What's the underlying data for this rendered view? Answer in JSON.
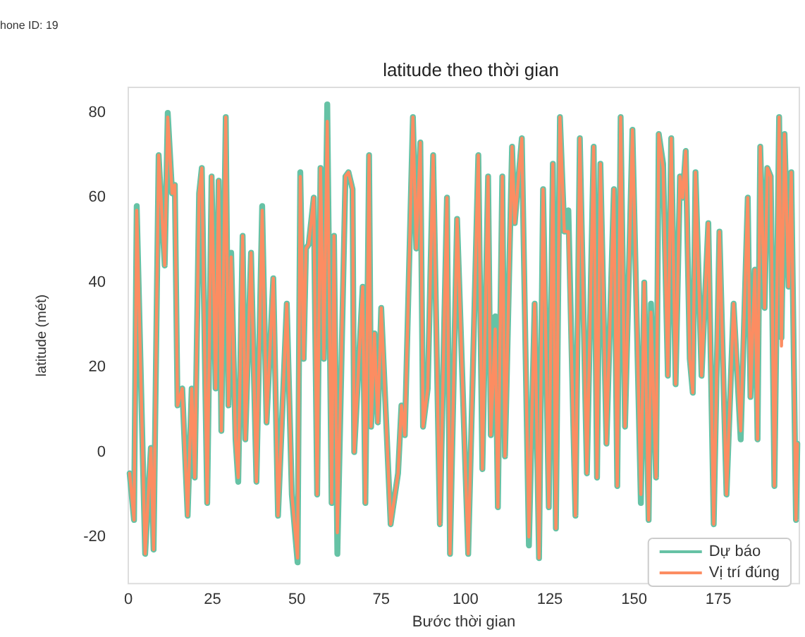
{
  "chart_data": {
    "type": "line",
    "title": "latitude theo thời gian",
    "xlabel": "Bước thời gian",
    "ylabel": "latitude (mét)",
    "annotations": [
      "hone ID: 19"
    ],
    "x": [
      0.4,
      1.7,
      2.5,
      5,
      6.7,
      7.5,
      9,
      10.8,
      11.7,
      13,
      13.8,
      14.6,
      16,
      17.6,
      18.8,
      19.7,
      21,
      21.8,
      23.4,
      24.7,
      25.9,
      26.8,
      27.6,
      28.9,
      29.7,
      30.5,
      31.8,
      32.6,
      33.9,
      34.7,
      36.4,
      38,
      39.7,
      41,
      43,
      44.4,
      47,
      48.5,
      50.2,
      51,
      52,
      52.7,
      53.5,
      55,
      56,
      57,
      58,
      59,
      60.3,
      61,
      62,
      64.4,
      65.3,
      66.5,
      67,
      69.5,
      70.3,
      71.4,
      72,
      73,
      74,
      75,
      77.8,
      80,
      81,
      82,
      84.4,
      85.4,
      86.6,
      87.4,
      88.8,
      90.4,
      92.4,
      94.5,
      95.4,
      97.5,
      100.8,
      103.8,
      105,
      106.7,
      107.5,
      108.8,
      109.6,
      110.9,
      111.7,
      113.8,
      114.6,
      116.7,
      118.8,
      120.5,
      121.8,
      123,
      124.7,
      125.9,
      126.8,
      128,
      129.3,
      130.5,
      132.6,
      133.9,
      136,
      138,
      139,
      140,
      141.8,
      144,
      145,
      146,
      147.3,
      149.5,
      152,
      153,
      154.3,
      155,
      156.5,
      157.3,
      158.6,
      160,
      161,
      162.3,
      163.6,
      164.4,
      165.3,
      166.5,
      167.4,
      168.2,
      170,
      172,
      173.6,
      175.3,
      177.4,
      179.5,
      181.6,
      183.7,
      184.5,
      185.8,
      186.6,
      187.4,
      188.7,
      189.5,
      190.5,
      191.6,
      193,
      193.7,
      194.6,
      195.8,
      196.6,
      198,
      198.4
    ],
    "series": [
      {
        "name": "Dự báo",
        "color": "#66c2a5",
        "values": [
          -5,
          -16,
          58,
          -24,
          1,
          -23,
          70,
          44,
          80,
          61,
          63,
          11,
          15,
          -15,
          15,
          -6,
          61,
          67,
          -12,
          65,
          15,
          64,
          5,
          79,
          11,
          47,
          3,
          -7,
          51,
          3,
          47,
          -7,
          58,
          7,
          41,
          -15,
          35,
          -10,
          -26,
          66,
          22,
          48,
          49,
          60,
          -10,
          67,
          22,
          82,
          -12,
          51,
          -24,
          65,
          66,
          62,
          0,
          39,
          -12,
          70,
          6,
          28,
          7,
          34,
          -17,
          -5,
          11,
          4,
          79,
          48,
          73,
          6,
          15,
          70,
          -17,
          60,
          -24,
          55,
          -24,
          70,
          -4,
          65,
          4,
          32,
          -13,
          65,
          -1,
          72,
          54,
          74,
          -22,
          35,
          -25,
          62,
          -13,
          68,
          -18,
          79,
          52,
          57,
          -15,
          74,
          -5,
          72,
          -6,
          68,
          2,
          62,
          -8,
          79,
          6,
          76,
          -12,
          40,
          -16,
          35,
          -6,
          75,
          68,
          18,
          74,
          16,
          65,
          60,
          71,
          22,
          14,
          66,
          18,
          54,
          -17,
          52,
          -10,
          35,
          3,
          60,
          13,
          43,
          3,
          72,
          34,
          67,
          65,
          -8,
          79,
          27,
          75,
          39,
          66,
          -16,
          2
        ]
      },
      {
        "name": "Vị trí đúng",
        "color": "#fc8d62",
        "values": [
          -5,
          -16,
          57,
          -24,
          1,
          -23,
          70,
          44,
          79,
          61,
          63,
          11,
          15,
          -15,
          15,
          -6,
          61,
          67,
          -12,
          65,
          15,
          64,
          5,
          79,
          11,
          46,
          3,
          -6,
          51,
          3,
          47,
          -7,
          57,
          7,
          41,
          -15,
          35,
          -10,
          -25,
          65,
          22,
          48,
          49,
          60,
          -10,
          67,
          22,
          78,
          -12,
          51,
          -19,
          65,
          66,
          62,
          0,
          39,
          -12,
          70,
          6,
          28,
          7,
          34,
          -17,
          -5,
          11,
          4,
          79,
          48,
          73,
          6,
          15,
          70,
          -17,
          60,
          -24,
          55,
          -24,
          70,
          -4,
          65,
          4,
          29,
          -13,
          65,
          -1,
          72,
          54,
          74,
          -20,
          35,
          -25,
          62,
          -13,
          68,
          -18,
          79,
          52,
          52,
          -15,
          74,
          -5,
          72,
          -6,
          68,
          2,
          62,
          -8,
          79,
          6,
          76,
          -10,
          40,
          -16,
          33,
          -6,
          75,
          67,
          18,
          74,
          16,
          65,
          60,
          71,
          22,
          14,
          66,
          18,
          54,
          -17,
          52,
          -10,
          35,
          5,
          60,
          13,
          43,
          3,
          72,
          34,
          67,
          65,
          -8,
          79,
          25,
          75,
          39,
          66,
          -16,
          2
        ]
      }
    ],
    "xlim": [
      0,
      199
    ],
    "xticks": [
      0,
      25,
      50,
      75,
      100,
      125,
      150,
      175
    ],
    "ylim": [
      -31,
      86
    ],
    "yticks": [
      -20,
      0,
      20,
      40,
      60,
      80
    ],
    "grid": false,
    "legend": "bottom right",
    "marker": "none",
    "line_style": "solid"
  }
}
